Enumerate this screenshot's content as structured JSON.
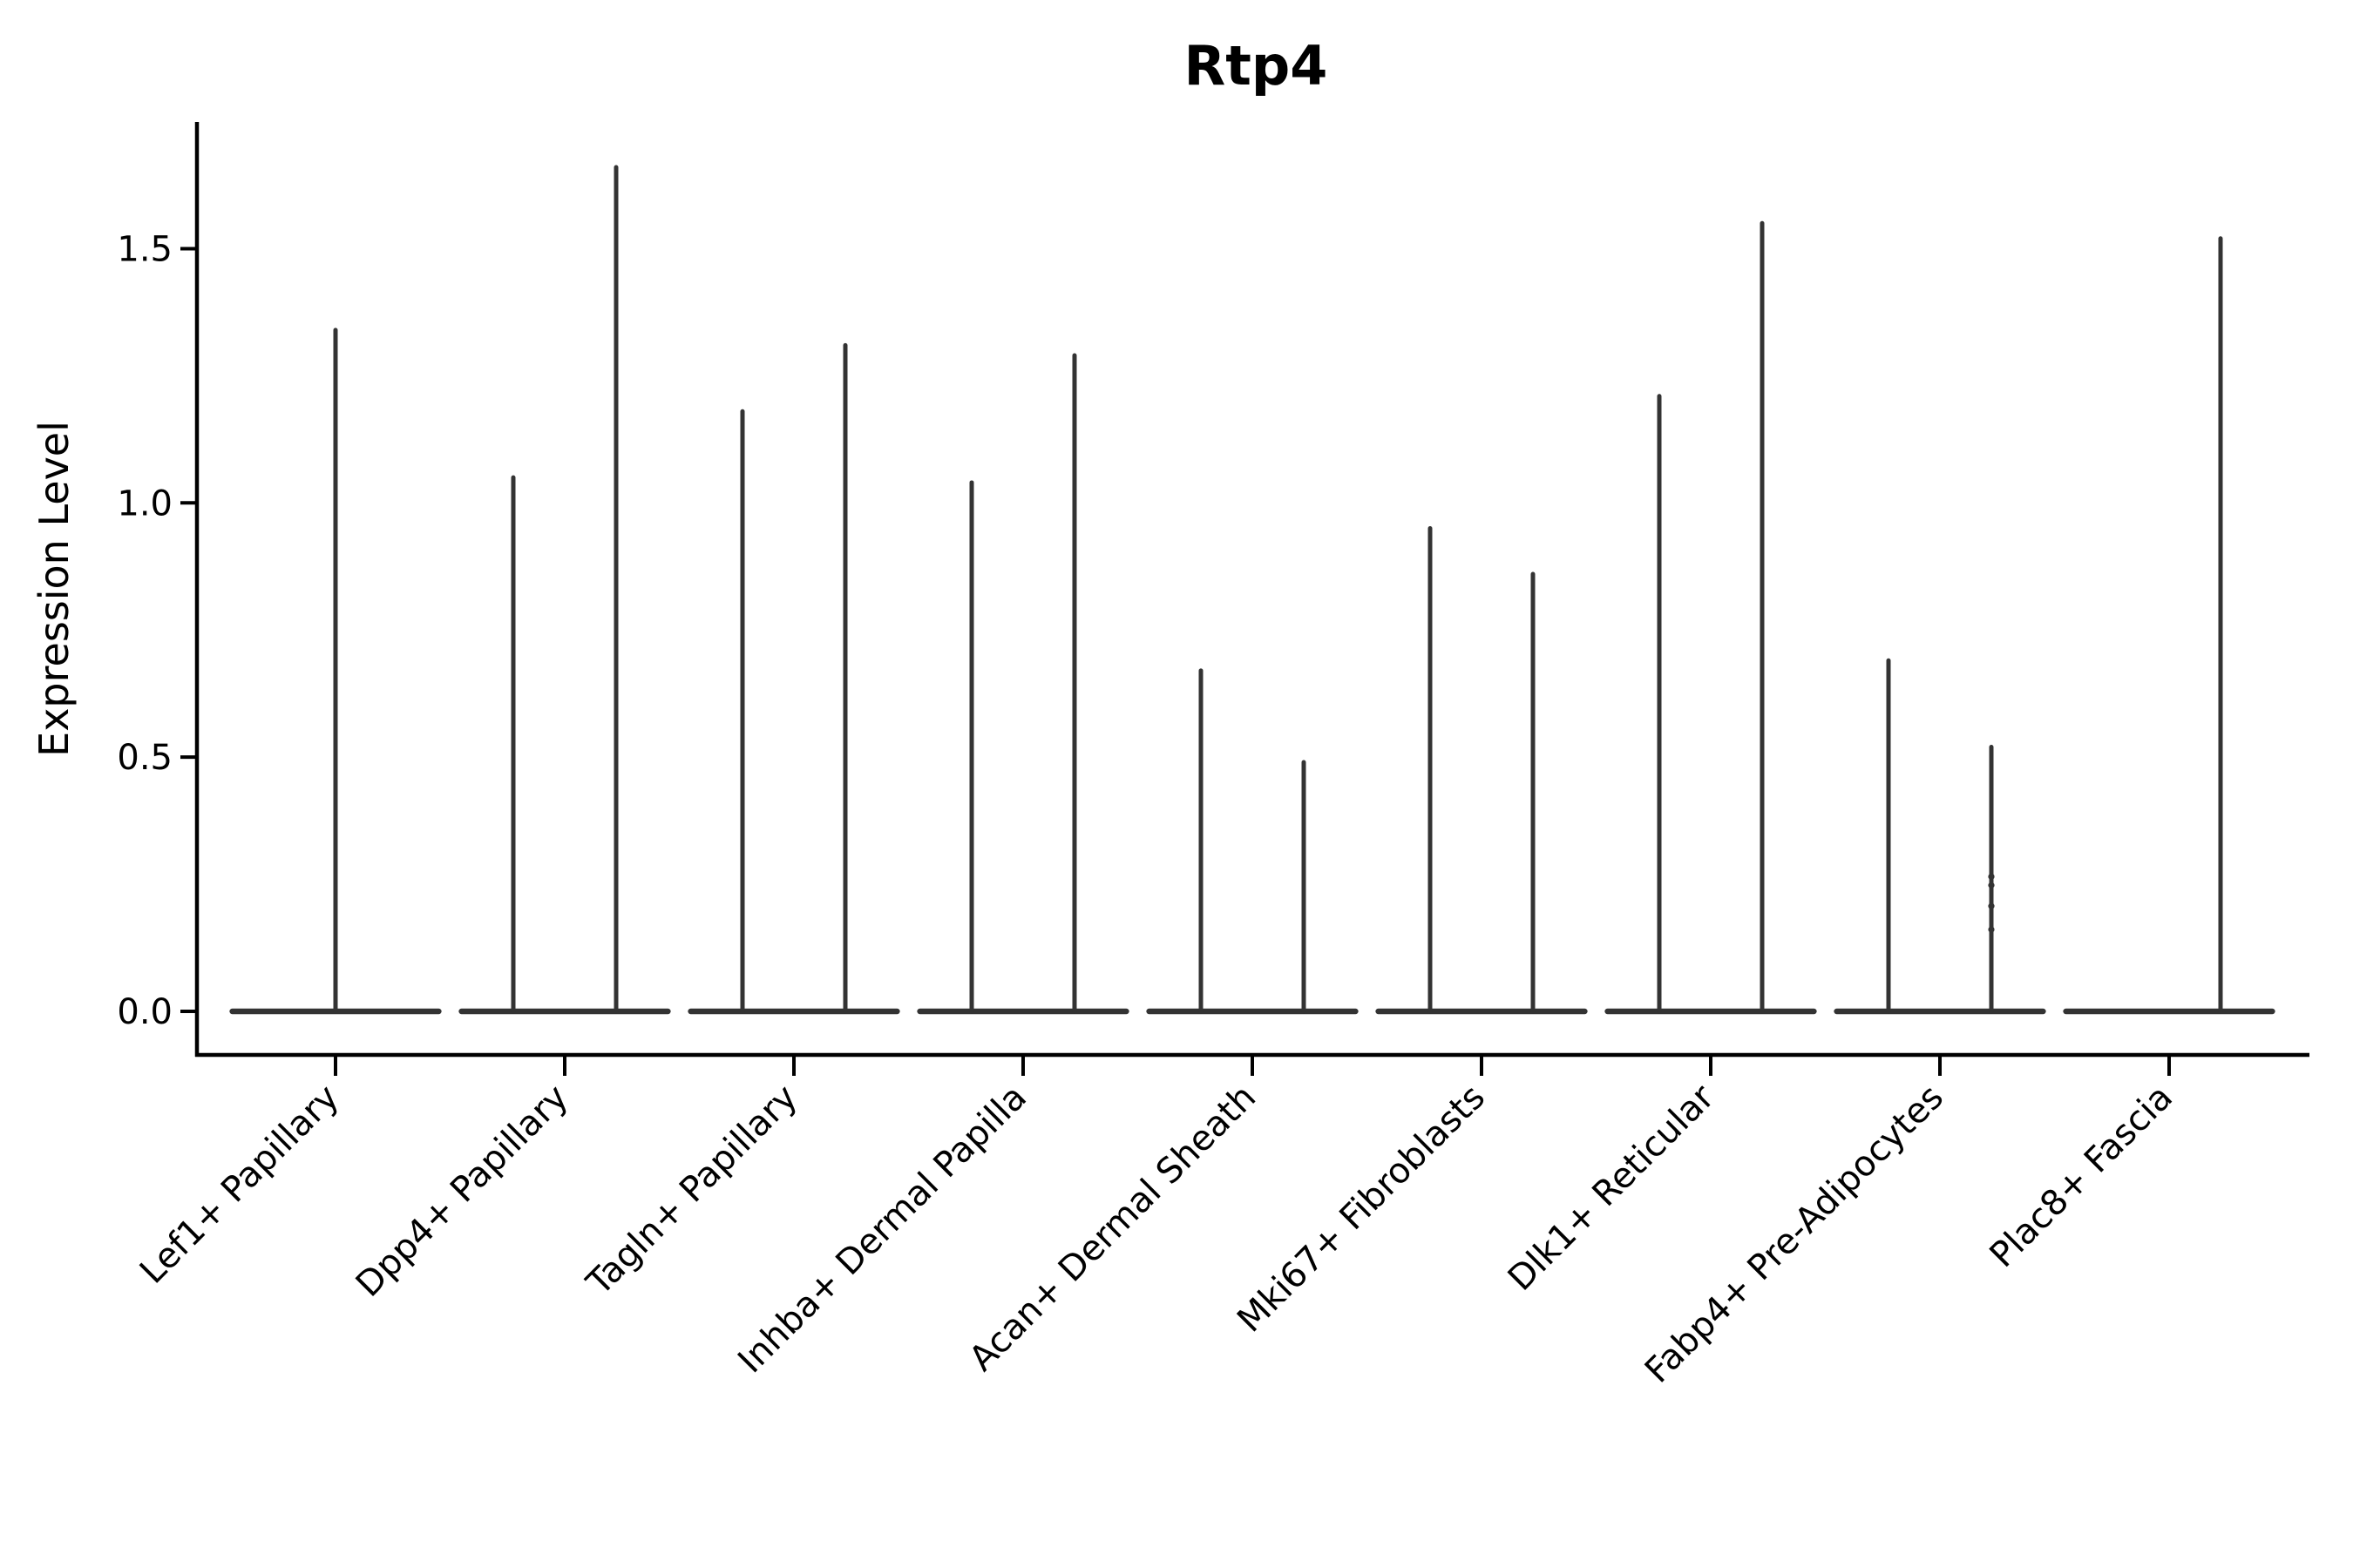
{
  "title": "Rtp4",
  "axes": {
    "ylabel": "Expression Level",
    "ytick_labels": [
      "0.0",
      "0.5",
      "1.0",
      "1.5"
    ]
  },
  "colors": {
    "violin_line": "#333333",
    "axis": "#000000",
    "background": "#ffffff"
  },
  "chart_data": {
    "type": "violin",
    "title": "Rtp4",
    "xlabel": "",
    "ylabel": "Expression Level",
    "ylim": [
      -0.09,
      1.75
    ],
    "yticks": [
      0.0,
      0.5,
      1.0,
      1.5
    ],
    "grid": false,
    "legend_position": "none",
    "categories": [
      "Lef1+ Papillary",
      "Dpp4+ Papillary",
      "Tagln+ Papillary",
      "Inhba+ Dermal Papilla",
      "Acan+ Dermal Sheath",
      "Mki67+ Fibroblasts",
      "Dlk1+ Reticular",
      "Fabp4+ Pre-Adipocytes",
      "Plac8+ Fascia"
    ],
    "series": [
      {
        "category": "Lef1+ Papillary",
        "violins": [
          {
            "slot": "center",
            "peak": 1.34
          }
        ]
      },
      {
        "category": "Dpp4+ Papillary",
        "violins": [
          {
            "slot": "left",
            "peak": 1.05
          },
          {
            "slot": "right",
            "peak": 1.66
          }
        ]
      },
      {
        "category": "Tagln+ Papillary",
        "violins": [
          {
            "slot": "left",
            "peak": 1.18
          },
          {
            "slot": "right",
            "peak": 1.31
          }
        ]
      },
      {
        "category": "Inhba+ Dermal Papilla",
        "violins": [
          {
            "slot": "left",
            "peak": 1.04
          },
          {
            "slot": "right",
            "peak": 1.29
          }
        ]
      },
      {
        "category": "Acan+ Dermal Sheath",
        "violins": [
          {
            "slot": "left",
            "peak": 0.67
          },
          {
            "slot": "right",
            "peak": 0.49
          }
        ]
      },
      {
        "category": "Mki67+ Fibroblasts",
        "violins": [
          {
            "slot": "left",
            "peak": 0.95
          },
          {
            "slot": "right",
            "peak": 0.86
          }
        ]
      },
      {
        "category": "Dlk1+ Reticular",
        "violins": [
          {
            "slot": "left",
            "peak": 1.21
          },
          {
            "slot": "right",
            "peak": 1.55
          }
        ]
      },
      {
        "category": "Fabp4+ Pre-Adipocytes",
        "violins": [
          {
            "slot": "left",
            "peak": 0.69
          },
          {
            "slot": "right",
            "peak": 0.52
          }
        ]
      },
      {
        "category": "Plac8+ Fascia",
        "violins": [
          {
            "slot": "left",
            "peak": 0.0
          },
          {
            "slot": "right",
            "peak": 1.52
          }
        ]
      }
    ],
    "points": [
      {
        "category": "Fabp4+ Pre-Adipocytes",
        "slot": "right",
        "values": [
          0.265,
          0.248,
          0.207,
          0.161
        ]
      }
    ]
  }
}
